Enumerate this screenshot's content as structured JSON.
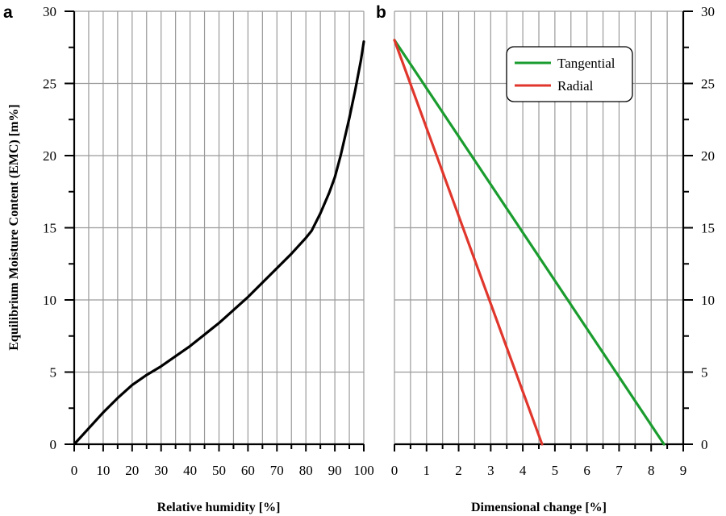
{
  "chart_data": [
    {
      "panel": "a",
      "type": "line",
      "xlabel": "Relative humidity [%]",
      "ylabel": "Equilibrium Moisture Content (EMC) [m%]",
      "xlim": [
        0,
        100
      ],
      "ylim": [
        0,
        30
      ],
      "xticks": [
        "0",
        "10",
        "20",
        "30",
        "40",
        "50",
        "60",
        "70",
        "80",
        "90",
        "100"
      ],
      "yticks": [
        "0",
        "5",
        "10",
        "15",
        "20",
        "25",
        "30"
      ],
      "grid": true,
      "series": [
        {
          "color": "#000000",
          "x": [
            0,
            5,
            10,
            15,
            20,
            25,
            30,
            35,
            40,
            45,
            50,
            55,
            60,
            65,
            70,
            75,
            80,
            82,
            85,
            88,
            90,
            92,
            95,
            97,
            99,
            100
          ],
          "y": [
            0,
            1.1,
            2.2,
            3.2,
            4.1,
            4.8,
            5.4,
            6.1,
            6.8,
            7.6,
            8.4,
            9.3,
            10.2,
            11.2,
            12.2,
            13.2,
            14.3,
            14.8,
            16.0,
            17.4,
            18.5,
            20.0,
            22.6,
            24.5,
            26.6,
            27.9
          ]
        }
      ]
    },
    {
      "panel": "b",
      "type": "line",
      "xlabel": "Dimensional change [%]",
      "ylabel": "",
      "xlim": [
        0,
        9
      ],
      "ylim": [
        0,
        30
      ],
      "xticks": [
        "0",
        "1",
        "2",
        "3",
        "4",
        "5",
        "6",
        "7",
        "8",
        "9"
      ],
      "yticks": [
        "0",
        "5",
        "10",
        "15",
        "20",
        "25",
        "30"
      ],
      "grid": true,
      "legend_position": "top-right",
      "series": [
        {
          "name": "Tangential",
          "color": "#1a9c2e",
          "x": [
            0,
            8.4
          ],
          "y": [
            28,
            0
          ]
        },
        {
          "name": "Radial",
          "color": "#e0362c",
          "x": [
            0,
            4.6
          ],
          "y": [
            28,
            0
          ]
        }
      ]
    }
  ]
}
